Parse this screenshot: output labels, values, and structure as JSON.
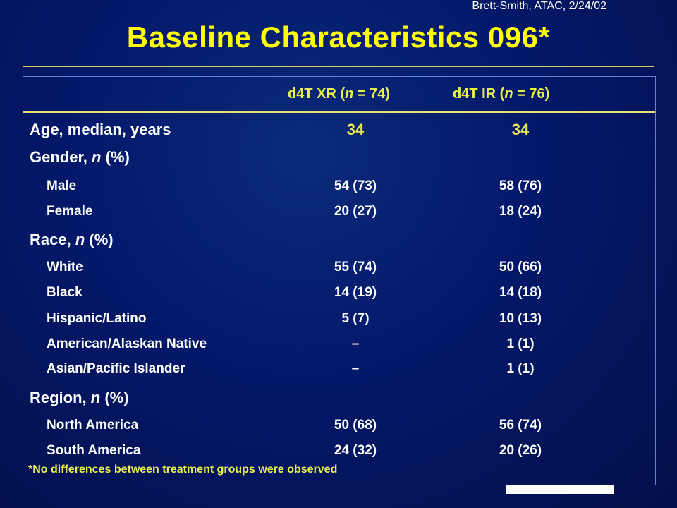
{
  "credit": "Brett-Smith, ATAC, 2/24/02",
  "title": "Baseline Characteristics 096*",
  "columns": {
    "col1_prefix": "d4T XR (",
    "col1_n": "n",
    "col1_suffix": " = 74)",
    "col2_prefix": "d4T IR (",
    "col2_n": "n",
    "col2_suffix": " = 76)"
  },
  "rows": {
    "age": {
      "label": "Age, median, years",
      "v1": "34",
      "v2": "34"
    },
    "gender": {
      "label_prefix": "Gender, ",
      "label_n": "n",
      "label_suffix": " (%)"
    },
    "male": {
      "label": "Male",
      "v1": "54 (73)",
      "v2": "58 (76)"
    },
    "female": {
      "label": "Female",
      "v1": "20 (27)",
      "v2": "18 (24)"
    },
    "race": {
      "label_prefix": "Race, ",
      "label_n": "n",
      "label_suffix": " (%)"
    },
    "white": {
      "label": "White",
      "v1": "55 (74)",
      "v2": "50 (66)"
    },
    "black": {
      "label": "Black",
      "v1": "14 (19)",
      "v2": "14 (18)"
    },
    "hispanic": {
      "label": "Hispanic/Latino",
      "v1": "5 (7)",
      "v2": "10 (13)"
    },
    "american": {
      "label": "American/Alaskan Native",
      "v1": "–",
      "v2": "1 (1)"
    },
    "asian": {
      "label": "Asian/Pacific Islander",
      "v1": "–",
      "v2": "1 (1)"
    },
    "region": {
      "label_prefix": "Region, ",
      "label_n": "n",
      "label_suffix": " (%)"
    },
    "north": {
      "label": "North America",
      "v1": "50 (68)",
      "v2": "56 (74)"
    },
    "south": {
      "label": "South America",
      "v1": "24 (32)",
      "v2": "20 (26)"
    }
  },
  "footnote": "*No differences between treatment groups were observed",
  "colors": {
    "background": "#04186a",
    "title": "#ffff00",
    "header": "#eaf24a",
    "label": "#ffffff"
  }
}
